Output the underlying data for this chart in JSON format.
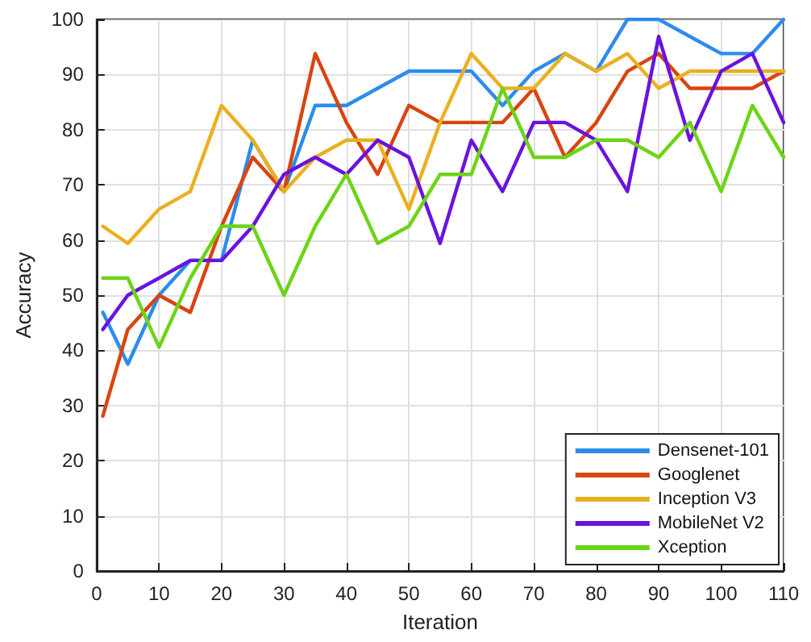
{
  "chart_data": {
    "type": "line",
    "xlabel": "Iteration",
    "ylabel": "Accuracy",
    "x": [
      1,
      5,
      10,
      15,
      20,
      25,
      30,
      35,
      40,
      45,
      50,
      55,
      60,
      65,
      70,
      75,
      80,
      85,
      90,
      95,
      100,
      105,
      110
    ],
    "xlim": [
      0,
      110
    ],
    "xticks": [
      0,
      10,
      20,
      30,
      40,
      50,
      60,
      70,
      80,
      90,
      100,
      110
    ],
    "ylim": [
      0,
      100
    ],
    "yticks": [
      0,
      10,
      20,
      30,
      40,
      50,
      60,
      70,
      80,
      90,
      100
    ],
    "grid": true,
    "legend": "bottom right",
    "marker": "none",
    "line_style": "solid",
    "series": [
      {
        "name": "Densenet-101",
        "color": "#2b8cee",
        "values": [
          46.9,
          37.5,
          50,
          56.3,
          56.3,
          78.1,
          68.8,
          84.4,
          84.4,
          87.5,
          90.6,
          90.6,
          90.6,
          84.4,
          90.6,
          93.8,
          90.6,
          100,
          100,
          96.9,
          93.8,
          93.8,
          100
        ]
      },
      {
        "name": "Googlenet",
        "color": "#d9440f",
        "values": [
          28.1,
          43.8,
          50,
          46.9,
          62.5,
          75,
          68.8,
          93.8,
          81.3,
          71.9,
          84.4,
          81.3,
          81.3,
          81.3,
          87.5,
          75,
          81.3,
          90.6,
          93.8,
          87.5,
          87.5,
          87.5,
          90.6
        ]
      },
      {
        "name": "Inception V3",
        "color": "#ebb020",
        "values": [
          62.5,
          59.4,
          65.6,
          68.8,
          84.4,
          78.1,
          68.8,
          75,
          78.1,
          78.1,
          65.6,
          81.3,
          93.8,
          87.5,
          87.5,
          93.8,
          90.6,
          93.8,
          87.5,
          90.6,
          90.6,
          90.6,
          90.6
        ]
      },
      {
        "name": "MobileNet V2",
        "color": "#6a12e0",
        "values": [
          43.8,
          50,
          53.1,
          56.3,
          56.3,
          62.5,
          71.9,
          75,
          71.9,
          78.1,
          75,
          59.4,
          78.1,
          68.8,
          81.3,
          81.3,
          78.1,
          68.8,
          96.9,
          78.1,
          90.6,
          93.8,
          81.3
        ]
      },
      {
        "name": "Xception",
        "color": "#6cd415",
        "values": [
          53.1,
          53.1,
          40.6,
          53.1,
          62.5,
          62.5,
          50,
          62.5,
          71.9,
          59.4,
          62.5,
          71.9,
          71.9,
          87.5,
          75,
          75,
          78.1,
          78.1,
          75,
          81.3,
          68.8,
          84.4,
          75
        ]
      }
    ]
  }
}
